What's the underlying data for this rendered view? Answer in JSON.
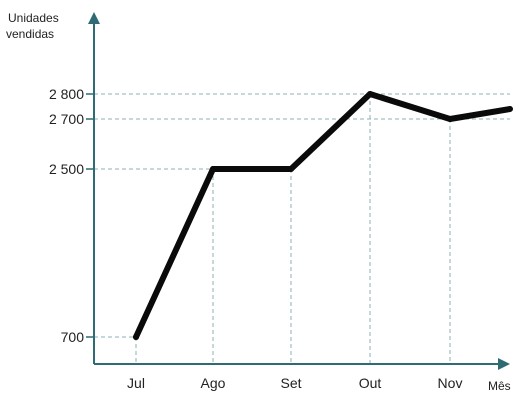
{
  "chart_data": {
    "type": "line",
    "title": "",
    "ylabel_lines": [
      "Unidades",
      "vendidas"
    ],
    "xlabel": "Mês",
    "categories": [
      "Jul",
      "Ago",
      "Set",
      "Out",
      "Nov"
    ],
    "x_tick_labels": [
      "Jul",
      "Ago",
      "Set",
      "Out",
      "Nov"
    ],
    "y_tick_values": [
      700,
      2500,
      2700,
      2800
    ],
    "y_tick_labels": [
      "700",
      "2 500",
      "2 700",
      "2 800"
    ],
    "y_axis_break": true,
    "series": [
      {
        "values": [
          700,
          2500,
          2500,
          2800,
          2700
        ],
        "trailing_value_after_last_tick": 2740
      }
    ],
    "grid": "dashed guide lines from each point to the axes",
    "legend": "none",
    "colors": {
      "line": "#0a0a0a",
      "axis": "#2e6b74",
      "guide": "#8fb0b5",
      "text": "#222222"
    }
  }
}
